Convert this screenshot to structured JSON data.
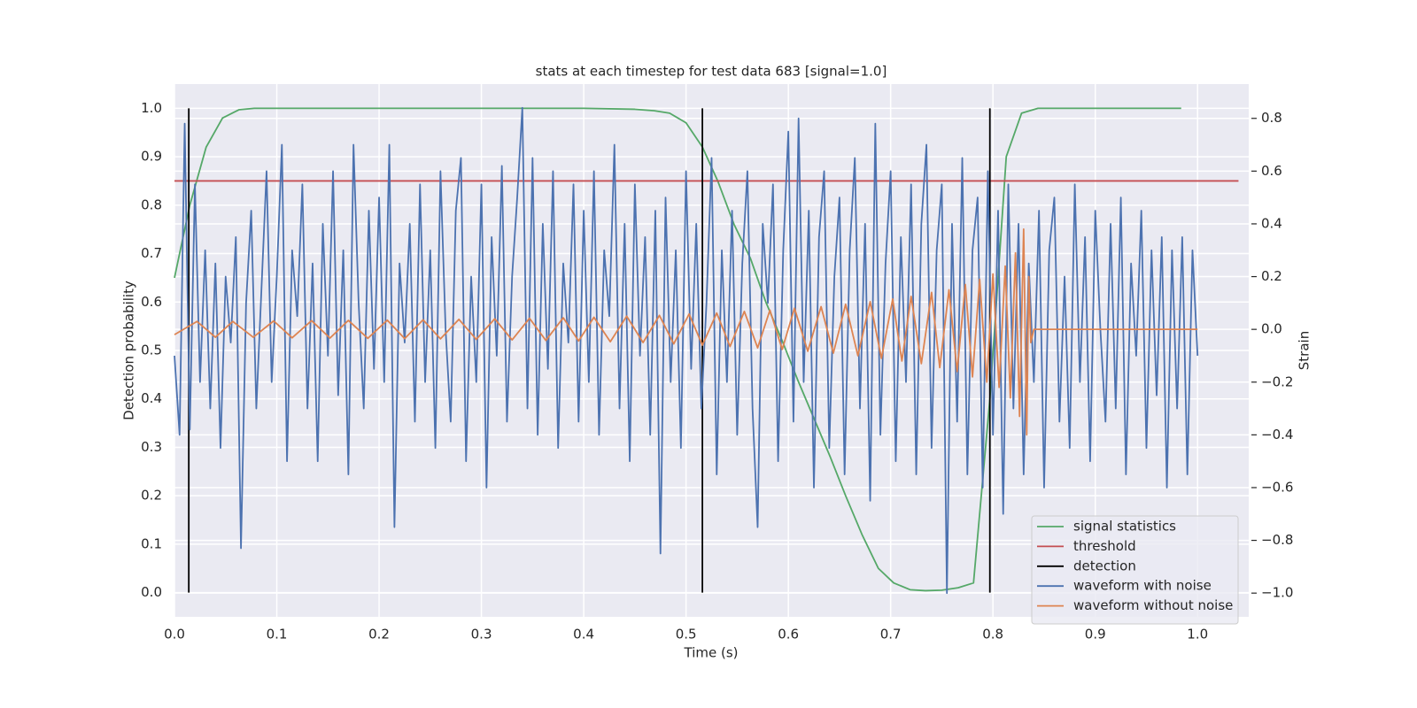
{
  "chart_data": {
    "type": "line",
    "title": "stats at each timestep for test data 683 [signal=1.0]",
    "xlabel": "Time (s)",
    "ylabel": "Detection probability",
    "y2label": "Strain",
    "xlim": [
      0,
      1.05
    ],
    "ylim": [
      -0.05,
      1.05
    ],
    "y2lim": [
      -1.09,
      0.93
    ],
    "xticks": [
      {
        "value": 0,
        "label": "0.0"
      },
      {
        "value": 0.1,
        "label": "0.1"
      },
      {
        "value": 0.2,
        "label": "0.2"
      },
      {
        "value": 0.3,
        "label": "0.3"
      },
      {
        "value": 0.4,
        "label": "0.4"
      },
      {
        "value": 0.5,
        "label": "0.5"
      },
      {
        "value": 0.6,
        "label": "0.6"
      },
      {
        "value": 0.7,
        "label": "0.7"
      },
      {
        "value": 0.8,
        "label": "0.8"
      },
      {
        "value": 0.9,
        "label": "0.9"
      },
      {
        "value": 1,
        "label": "1.0"
      }
    ],
    "yticks": [
      {
        "value": 0,
        "label": "0.0"
      },
      {
        "value": 0.1,
        "label": "0.1"
      },
      {
        "value": 0.2,
        "label": "0.2"
      },
      {
        "value": 0.3,
        "label": "0.3"
      },
      {
        "value": 0.4,
        "label": "0.4"
      },
      {
        "value": 0.5,
        "label": "0.5"
      },
      {
        "value": 0.6,
        "label": "0.6"
      },
      {
        "value": 0.7,
        "label": "0.7"
      },
      {
        "value": 0.8,
        "label": "0.8"
      },
      {
        "value": 0.9,
        "label": "0.9"
      },
      {
        "value": 1,
        "label": "1.0"
      }
    ],
    "y2ticks": [
      {
        "value": -1,
        "label": "−1.0"
      },
      {
        "value": -0.8,
        "label": "−0.8"
      },
      {
        "value": -0.6,
        "label": "−0.6"
      },
      {
        "value": -0.4,
        "label": "−0.4"
      },
      {
        "value": -0.2,
        "label": "−0.2"
      },
      {
        "value": 0,
        "label": "0.0"
      },
      {
        "value": 0.2,
        "label": "0.2"
      },
      {
        "value": 0.4,
        "label": "0.4"
      },
      {
        "value": 0.6,
        "label": "0.6"
      },
      {
        "value": 0.8,
        "label": "0.8"
      }
    ],
    "grid": true,
    "legend": "lower right",
    "series": [
      {
        "name": "signal statistics",
        "color": "#55a868",
        "axis": "y",
        "x": [
          0,
          0.015,
          0.031,
          0.047,
          0.063,
          0.078,
          0.094,
          0.2,
          0.3,
          0.4,
          0.45,
          0.469,
          0.484,
          0.5,
          0.516,
          0.531,
          0.547,
          0.563,
          0.578,
          0.594,
          0.609,
          0.625,
          0.641,
          0.656,
          0.672,
          0.688,
          0.703,
          0.719,
          0.734,
          0.75,
          0.766,
          0.781,
          0.797,
          0.813,
          0.828,
          0.844,
          0.9,
          0.984
        ],
        "values": [
          0.65,
          0.8,
          0.92,
          0.98,
          0.997,
          1.0,
          1.0,
          1.0,
          1.0,
          1.0,
          0.998,
          0.995,
          0.99,
          0.97,
          0.92,
          0.85,
          0.76,
          0.69,
          0.6,
          0.52,
          0.44,
          0.36,
          0.28,
          0.2,
          0.12,
          0.05,
          0.02,
          0.006,
          0.004,
          0.005,
          0.01,
          0.02,
          0.4,
          0.9,
          0.99,
          1.0,
          1.0,
          1.0
        ]
      },
      {
        "name": "threshold",
        "color": "#c44e52",
        "axis": "y",
        "x": [
          0,
          1.04
        ],
        "values": [
          0.85,
          0.85
        ]
      },
      {
        "name": "detection",
        "color": "#000000",
        "axis": "y",
        "x": [
          0.014,
          0.014,
          null,
          0.516,
          0.516,
          null,
          0.797,
          0.797
        ],
        "values": [
          0,
          1,
          null,
          0,
          1,
          null,
          0,
          1
        ]
      },
      {
        "name": "waveform with noise",
        "color": "#4c72b0",
        "axis": "y2",
        "x": [
          0,
          0.005,
          0.01,
          0.015,
          0.02,
          0.025,
          0.03,
          0.035,
          0.04,
          0.045,
          0.05,
          0.055,
          0.06,
          0.065,
          0.07,
          0.075,
          0.08,
          0.085,
          0.09,
          0.095,
          0.1,
          0.105,
          0.11,
          0.115,
          0.12,
          0.125,
          0.13,
          0.135,
          0.14,
          0.145,
          0.15,
          0.155,
          0.16,
          0.165,
          0.17,
          0.175,
          0.18,
          0.185,
          0.19,
          0.195,
          0.2,
          0.205,
          0.21,
          0.215,
          0.22,
          0.225,
          0.23,
          0.235,
          0.24,
          0.245,
          0.25,
          0.255,
          0.26,
          0.265,
          0.27,
          0.275,
          0.28,
          0.285,
          0.29,
          0.295,
          0.3,
          0.305,
          0.31,
          0.315,
          0.32,
          0.325,
          0.33,
          0.335,
          0.34,
          0.345,
          0.35,
          0.355,
          0.36,
          0.365,
          0.37,
          0.375,
          0.38,
          0.385,
          0.39,
          0.395,
          0.4,
          0.405,
          0.41,
          0.415,
          0.42,
          0.425,
          0.43,
          0.435,
          0.44,
          0.445,
          0.45,
          0.455,
          0.46,
          0.465,
          0.47,
          0.475,
          0.48,
          0.485,
          0.49,
          0.495,
          0.5,
          0.505,
          0.51,
          0.515,
          0.52,
          0.525,
          0.53,
          0.535,
          0.54,
          0.545,
          0.55,
          0.555,
          0.56,
          0.565,
          0.57,
          0.575,
          0.58,
          0.585,
          0.59,
          0.595,
          0.6,
          0.605,
          0.61,
          0.615,
          0.62,
          0.625,
          0.63,
          0.635,
          0.64,
          0.645,
          0.65,
          0.655,
          0.66,
          0.665,
          0.67,
          0.675,
          0.68,
          0.685,
          0.69,
          0.695,
          0.7,
          0.705,
          0.71,
          0.715,
          0.72,
          0.725,
          0.73,
          0.735,
          0.74,
          0.745,
          0.75,
          0.755,
          0.76,
          0.765,
          0.77,
          0.775,
          0.78,
          0.785,
          0.79,
          0.795,
          0.8,
          0.805,
          0.81,
          0.815,
          0.82,
          0.825,
          0.83,
          0.835,
          0.84,
          0.845,
          0.85,
          0.855,
          0.86,
          0.865,
          0.87,
          0.875,
          0.88,
          0.885,
          0.89,
          0.895,
          0.9,
          0.905,
          0.91,
          0.915,
          0.92,
          0.925,
          0.93,
          0.935,
          0.94,
          0.945,
          0.95,
          0.955,
          0.96,
          0.965,
          0.97,
          0.975,
          0.98,
          0.985,
          0.99,
          0.995,
          1.0
        ],
        "values": [
          -0.1,
          -0.4,
          0.78,
          -0.38,
          0.55,
          -0.2,
          0.3,
          -0.3,
          0.25,
          -0.45,
          0.2,
          -0.05,
          0.35,
          -0.83,
          0.1,
          0.45,
          -0.3,
          0.15,
          0.6,
          -0.2,
          0.2,
          0.7,
          -0.5,
          0.3,
          0.05,
          0.55,
          -0.3,
          0.25,
          -0.5,
          0.4,
          -0.1,
          0.6,
          -0.25,
          0.3,
          -0.55,
          0.7,
          0.1,
          -0.3,
          0.45,
          -0.15,
          0.5,
          -0.2,
          0.7,
          -0.75,
          0.25,
          -0.05,
          0.4,
          -0.35,
          0.55,
          -0.2,
          0.3,
          -0.45,
          0.6,
          0.0,
          -0.35,
          0.45,
          0.65,
          -0.5,
          0.2,
          -0.2,
          0.55,
          -0.6,
          0.35,
          -0.1,
          0.62,
          -0.35,
          0.2,
          0.5,
          0.84,
          -0.3,
          0.65,
          -0.4,
          0.4,
          -0.15,
          0.6,
          -0.45,
          0.25,
          -0.05,
          0.55,
          -0.35,
          0.45,
          -0.2,
          0.6,
          -0.4,
          0.3,
          0.05,
          0.7,
          -0.3,
          0.4,
          -0.5,
          0.55,
          -0.1,
          0.35,
          -0.4,
          0.45,
          -0.85,
          0.5,
          -0.2,
          0.3,
          -0.45,
          0.6,
          -0.15,
          0.4,
          -0.3,
          0.1,
          0.65,
          -0.55,
          0.3,
          -0.2,
          0.45,
          -0.4,
          0.25,
          0.6,
          -0.3,
          -0.75,
          0.4,
          0.1,
          0.55,
          -0.5,
          0.3,
          0.75,
          -0.35,
          0.8,
          -0.2,
          0.45,
          -0.6,
          0.35,
          0.6,
          -0.45,
          0.2,
          0.5,
          -0.55,
          0.3,
          0.65,
          -0.3,
          0.4,
          -0.65,
          0.78,
          -0.4,
          0.25,
          0.6,
          -0.5,
          0.35,
          -0.2,
          0.55,
          -0.55,
          0.4,
          0.7,
          -0.45,
          0.3,
          0.55,
          -1.0,
          0.4,
          -0.35,
          0.65,
          -0.55,
          0.3,
          0.5,
          -0.6,
          0.6,
          -0.4,
          0.45,
          -0.7,
          0.55,
          -0.3,
          0.4,
          -0.55,
          0.25,
          -0.2,
          0.45,
          -0.6,
          0.3,
          0.5,
          -0.35,
          0.2,
          -0.45,
          0.55,
          -0.2,
          0.35,
          -0.5,
          0.45,
          0.0,
          -0.35,
          0.4,
          -0.3,
          0.5,
          -0.55,
          0.25,
          -0.1,
          0.45,
          -0.45,
          0.3,
          -0.25,
          0.35,
          -0.6,
          0.3,
          -0.3,
          0.35,
          -0.55,
          0.3,
          -0.1
        ]
      },
      {
        "name": "waveform without noise",
        "color": "#dd8452",
        "axis": "y2",
        "x": [
          0,
          0.022,
          0.04,
          0.057,
          0.077,
          0.097,
          0.115,
          0.134,
          0.152,
          0.17,
          0.189,
          0.208,
          0.225,
          0.243,
          0.26,
          0.278,
          0.295,
          0.313,
          0.33,
          0.347,
          0.363,
          0.38,
          0.395,
          0.41,
          0.426,
          0.442,
          0.458,
          0.474,
          0.488,
          0.503,
          0.516,
          0.53,
          0.543,
          0.557,
          0.57,
          0.582,
          0.594,
          0.606,
          0.619,
          0.632,
          0.644,
          0.656,
          0.668,
          0.68,
          0.691,
          0.702,
          0.711,
          0.72,
          0.73,
          0.74,
          0.748,
          0.757,
          0.765,
          0.773,
          0.78,
          0.787,
          0.794,
          0.8,
          0.806,
          0.812,
          0.817,
          0.822,
          0.826,
          0.83,
          0.833,
          0.835,
          0.837,
          0.84,
          1.0
        ],
        "values": [
          -0.02,
          0.03,
          -0.03,
          0.03,
          -0.03,
          0.032,
          -0.032,
          0.033,
          -0.033,
          0.034,
          -0.034,
          0.035,
          -0.035,
          0.036,
          -0.036,
          0.038,
          -0.038,
          0.04,
          -0.04,
          0.042,
          -0.042,
          0.044,
          -0.044,
          0.046,
          -0.047,
          0.05,
          -0.05,
          0.053,
          -0.055,
          0.058,
          -0.06,
          0.062,
          -0.065,
          0.068,
          -0.07,
          0.073,
          -0.076,
          0.08,
          -0.083,
          0.086,
          -0.09,
          0.095,
          -0.1,
          0.105,
          -0.11,
          0.115,
          -0.12,
          0.125,
          -0.13,
          0.14,
          -0.145,
          0.15,
          -0.16,
          0.17,
          -0.18,
          0.19,
          -0.2,
          0.21,
          -0.22,
          0.24,
          -0.26,
          0.29,
          -0.33,
          0.38,
          -0.4,
          0.2,
          -0.05,
          0.0,
          0.0
        ]
      }
    ]
  }
}
